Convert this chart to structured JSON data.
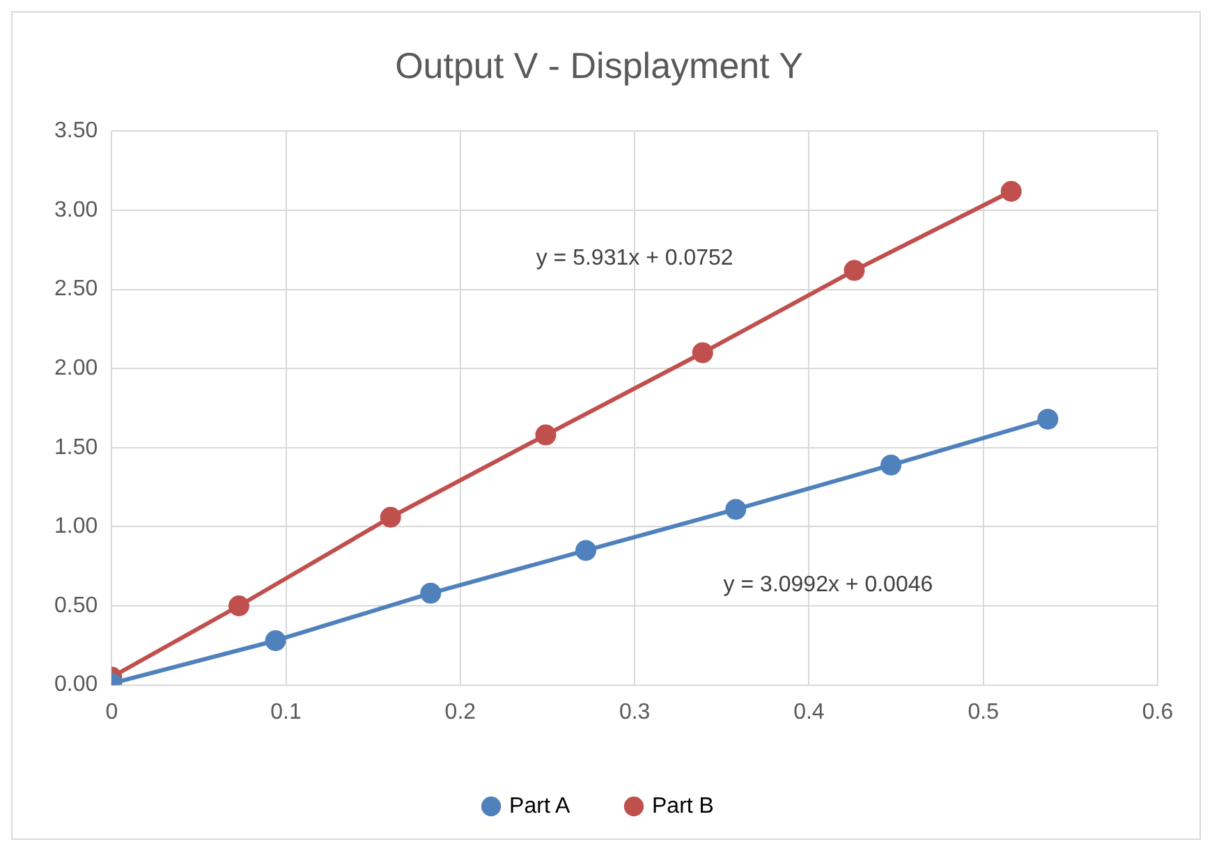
{
  "chart_data": {
    "type": "line",
    "title": "Output V - Displayment Y",
    "series": [
      {
        "name": "Part A",
        "color": "#4f81bd",
        "x": [
          0,
          0.094,
          0.183,
          0.272,
          0.358,
          0.447,
          0.537
        ],
        "values": [
          0.01,
          0.28,
          0.58,
          0.85,
          1.11,
          1.39,
          1.68
        ]
      },
      {
        "name": "Part B",
        "color": "#c0504d",
        "x": [
          0,
          0.073,
          0.16,
          0.249,
          0.339,
          0.426,
          0.516
        ],
        "values": [
          0.05,
          0.5,
          1.06,
          1.58,
          2.1,
          2.62,
          3.12
        ]
      }
    ],
    "annotations": [
      "y = 5.931x + 0.0752",
      "y = 3.0992x + 0.0046"
    ],
    "xlim": [
      0,
      0.6
    ],
    "xticks": [
      0,
      0.1,
      0.2,
      0.3,
      0.4,
      0.5,
      0.6
    ],
    "ylim": [
      0,
      3.5
    ],
    "yticks": [
      {
        "value": 0,
        "label": "0.00"
      },
      {
        "value": 0.5,
        "label": "0.50"
      },
      {
        "value": 1,
        "label": "1.00"
      },
      {
        "value": 1.5,
        "label": "1.50"
      },
      {
        "value": 2,
        "label": "2.00"
      },
      {
        "value": 2.5,
        "label": "2.50"
      },
      {
        "value": 3,
        "label": "3.00"
      },
      {
        "value": 3.5,
        "label": "3.50"
      }
    ],
    "grid": true,
    "legend": "bottom",
    "marker": "circle",
    "line_style": "solid"
  }
}
